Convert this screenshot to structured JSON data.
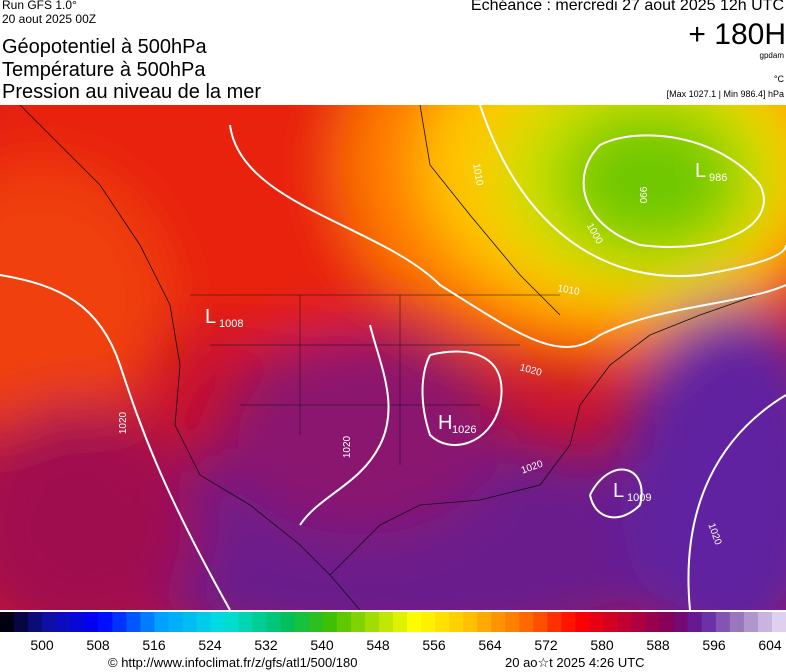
{
  "header": {
    "run": "Run GFS 1.0°",
    "run_date": "20 aout 2025 00Z",
    "titles": [
      "Géopotentiel à 500hPa",
      "Température à 500hPa",
      "Pression au niveau de la mer"
    ],
    "echeance": "Echéance : mercredi 27 aout 2025 12h UTC",
    "lead": "+ 180H",
    "units": [
      "gpdam",
      "°C"
    ],
    "range": "[Max 1027.1 | Min 986.4] hPa"
  },
  "map": {
    "systems": [
      {
        "symbol": "L",
        "value": 1008
      },
      {
        "symbol": "H",
        "value": 1026
      },
      {
        "symbol": "L",
        "value": 1009
      },
      {
        "symbol": "L",
        "value": 986
      }
    ],
    "isobar_labels": [
      1020,
      1020,
      1020,
      1020,
      1010,
      1000,
      990,
      1010,
      1020
    ]
  },
  "colorbar": {
    "ticks": [
      500,
      508,
      516,
      524,
      532,
      540,
      548,
      556,
      564,
      572,
      580,
      588,
      596,
      604
    ]
  },
  "footer": {
    "url": "© http://www.infoclimat.fr/z/gfs/atl1/500/180",
    "time": "20 ao☆t 2025  4:26 UTC"
  }
}
